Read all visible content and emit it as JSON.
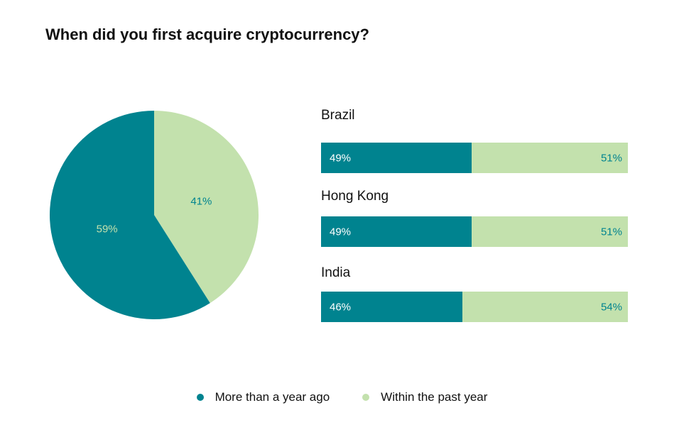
{
  "chart_data": [
    {
      "type": "pie",
      "title": "When did you first acquire cryptocurrency?",
      "categories": [
        "Within the past year",
        "More than a year ago"
      ],
      "values": [
        41,
        59
      ],
      "labels": [
        "41%",
        "59%"
      ],
      "colors": [
        "#c3e1ad",
        "#00838f"
      ]
    },
    {
      "type": "bar",
      "orientation": "horizontal-stacked-100",
      "categories": [
        "Brazil",
        "Hong Kong",
        "India"
      ],
      "series": [
        {
          "name": "More than a year ago",
          "values": [
            49,
            49,
            46
          ],
          "labels": [
            "49%",
            "49%",
            "46%"
          ],
          "color": "#00838f"
        },
        {
          "name": "Within the past year",
          "values": [
            51,
            51,
            54
          ],
          "labels": [
            "51%",
            "51%",
            "54%"
          ],
          "color": "#c3e1ad"
        }
      ]
    }
  ],
  "legend": {
    "items": [
      {
        "label": "More than a year ago",
        "color": "#00838f"
      },
      {
        "label": "Within the past year",
        "color": "#c3e1ad"
      }
    ],
    "placement": "bottom"
  }
}
